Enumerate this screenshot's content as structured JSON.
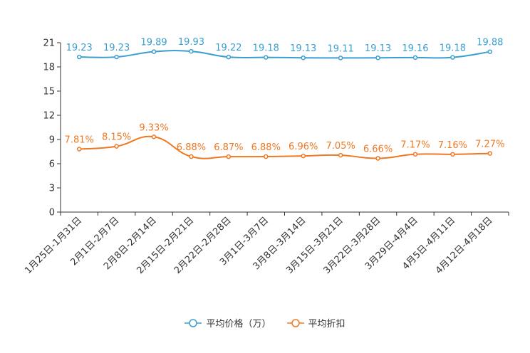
{
  "chart_data": {
    "type": "line",
    "title": "",
    "xlabel": "",
    "ylabel": "",
    "ylim": [
      0,
      21
    ],
    "yticks": [
      0,
      3,
      6,
      9,
      12,
      15,
      18,
      21
    ],
    "categories": [
      "1月25日-1月31日",
      "2月1日-2月7日",
      "2月8日-2月14日",
      "2月15日-2月21日",
      "2月22日-2月28日",
      "3月1日-3月7日",
      "3月8日-3月14日",
      "3月15日-3月21日",
      "3月22日-3月28日",
      "3月29日-4月4日",
      "4月5日-4月11日",
      "4月12日-4月18日"
    ],
    "series": [
      {
        "name": "平均价格（万）",
        "color": "#3a9fd0",
        "values": [
          19.23,
          19.23,
          19.89,
          19.93,
          19.22,
          19.18,
          19.13,
          19.11,
          19.13,
          19.16,
          19.18,
          19.88
        ],
        "labels": [
          "19.23",
          "19.23",
          "19.89",
          "19.93",
          "19.22",
          "19.18",
          "19.13",
          "19.11",
          "19.13",
          "19.16",
          "19.18",
          "19.88"
        ]
      },
      {
        "name": "平均折扣",
        "color": "#f07820",
        "values": [
          7.81,
          8.15,
          9.33,
          6.88,
          6.87,
          6.88,
          6.96,
          7.05,
          6.66,
          7.17,
          7.16,
          7.27
        ],
        "labels": [
          "7.81%",
          "8.15%",
          "9.33%",
          "6.88%",
          "6.87%",
          "6.88%",
          "6.96%",
          "7.05%",
          "6.66%",
          "7.17%",
          "7.16%",
          "7.27%"
        ]
      }
    ],
    "legend_position": "bottom",
    "grid": false
  }
}
